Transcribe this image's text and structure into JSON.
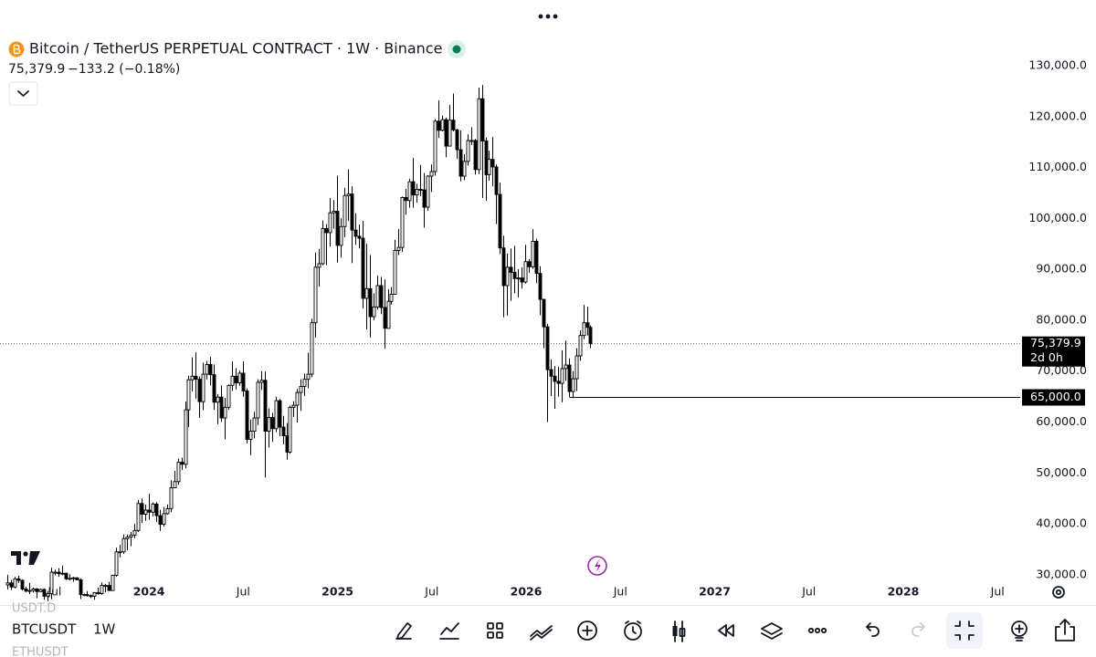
{
  "header": {
    "symbol": "Bitcoin / TetherUS PERPETUAL CONTRACT · 1W · Binance",
    "price": "75,379.9",
    "change": "−133.2 (−0.18%)"
  },
  "toolbar": {
    "symbol": "BTCUSDT",
    "interval": "1W",
    "watchlist": [
      "USDT.D",
      "ETHUSDT"
    ]
  },
  "chart_data": {
    "type": "candlestick",
    "up_color": "#ffffff",
    "down_color": "#000000",
    "x": [
      2023.25,
      2023.2692,
      2023.2884,
      2023.3076,
      2023.3268,
      2023.346,
      2023.3652,
      2023.3844,
      2023.4036,
      2023.4228,
      2023.442,
      2023.4612,
      2023.4804,
      2023.4996,
      2023.5188,
      2023.538,
      2023.5572,
      2023.5764,
      2023.5956,
      2023.6148,
      2023.634,
      2023.6532,
      2023.6724,
      2023.6916,
      2023.7108,
      2023.73,
      2023.7492,
      2023.7684,
      2023.7876,
      2023.8068,
      2023.826,
      2023.8452,
      2023.8644,
      2023.8836,
      2023.9028,
      2023.922,
      2023.9412,
      2023.9604,
      2023.9796,
      2023.9988,
      2024.018,
      2024.0372,
      2024.0564,
      2024.0756,
      2024.0948,
      2024.114,
      2024.1332,
      2024.1524,
      2024.1716,
      2024.1908,
      2024.21,
      2024.2292,
      2024.2484,
      2024.2676,
      2024.2868,
      2024.306,
      2024.3252,
      2024.3444,
      2024.3636,
      2024.3828,
      2024.402,
      2024.4212,
      2024.4404,
      2024.4596,
      2024.4788,
      2024.498,
      2024.5172,
      2024.5364,
      2024.5556,
      2024.5748,
      2024.594,
      2024.6132,
      2024.6324,
      2024.6516,
      2024.6708,
      2024.69,
      2024.7092,
      2024.7284,
      2024.7476,
      2024.7668,
      2024.786,
      2024.8052,
      2024.8244,
      2024.8436,
      2024.8628,
      2024.882,
      2024.9012,
      2024.9204,
      2024.9396,
      2024.9588,
      2024.978,
      2024.9972,
      2025.0164,
      2025.0356,
      2025.0548,
      2025.074,
      2025.0932,
      2025.1124,
      2025.1316,
      2025.1508,
      2025.17,
      2025.1892,
      2025.2084,
      2025.2276,
      2025.2468,
      2025.266,
      2025.2852,
      2025.3044,
      2025.3236,
      2025.3428,
      2025.362,
      2025.3812,
      2025.4004,
      2025.4196,
      2025.4388,
      2025.458,
      2025.4772,
      2025.4964,
      2025.5156,
      2025.5348,
      2025.554,
      2025.5732,
      2025.5924,
      2025.6116,
      2025.6308,
      2025.65,
      2025.6692,
      2025.6884,
      2025.7076,
      2025.7268,
      2025.746,
      2025.7652,
      2025.7844,
      2025.8036,
      2025.8228,
      2025.842,
      2025.8612,
      2025.8804,
      2025.8996,
      2025.9188,
      2025.938,
      2025.9572,
      2025.9764,
      2025.9956,
      2026.0148,
      2026.034,
      2026.0532,
      2026.0724,
      2026.0916,
      2026.1108,
      2026.13,
      2026.1492,
      2026.1684,
      2026.1876,
      2026.2068,
      2026.226,
      2026.2452,
      2026.2644,
      2026.2836,
      2026.3028,
      2026.322,
      2026.3412
    ],
    "open": [
      28000,
      28400,
      27600,
      29200,
      28900,
      27200,
      26800,
      26900,
      27200,
      26700,
      27100,
      25800,
      26300,
      30500,
      30500,
      30200,
      30300,
      29200,
      29300,
      29400,
      29000,
      26100,
      26100,
      25900,
      25800,
      26500,
      26300,
      27900,
      27900,
      26900,
      29900,
      34500,
      34500,
      37100,
      37400,
      37800,
      38700,
      44000,
      41900,
      42700,
      42300,
      43900,
      41600,
      39900,
      42000,
      43000,
      47100,
      48300,
      52100,
      51700,
      62400,
      68300,
      69000,
      68400,
      64000,
      69400,
      71300,
      69300,
      63900,
      64900,
      60800,
      62900,
      67200,
      69000,
      67700,
      69600,
      66100,
      56600,
      58200,
      60800,
      67800,
      68200,
      58200,
      60900,
      58700,
      64200,
      59000,
      57300,
      54100,
      62900,
      63300,
      65800,
      67000,
      68400,
      69400,
      79500,
      90400,
      91100,
      98000,
      97200,
      101100,
      101400,
      94700,
      98400,
      104500,
      104800,
      97700,
      96500,
      96100,
      84300,
      86200,
      80700,
      82600,
      86800,
      82500,
      78400,
      83700,
      85100,
      93700,
      94300,
      104100,
      103500,
      107200,
      104600,
      105700,
      105600,
      102200,
      108300,
      109200,
      119100,
      117300,
      119400,
      114200,
      119300,
      117400,
      113500,
      108300,
      111200,
      115300,
      115300,
      109600,
      123500,
      115200,
      108600,
      111600,
      110100,
      104700,
      94200,
      86800,
      90400,
      89400,
      88200,
      88300,
      87500,
      91500,
      90500,
      95500,
      89200,
      84100,
      78700,
      70300,
      69000,
      68000,
      67600,
      70500,
      71200,
      66000,
      68500,
      73000,
      77000,
      79500,
      78600
    ],
    "high": [
      30000,
      29000,
      29600,
      29800,
      29100,
      27700,
      28400,
      27500,
      27400,
      27300,
      27300,
      26800,
      31400,
      31000,
      31300,
      31800,
      30400,
      30100,
      29600,
      29500,
      29300,
      26300,
      26800,
      26100,
      26600,
      27500,
      28500,
      28200,
      28600,
      30000,
      35300,
      35900,
      37900,
      37900,
      38400,
      40000,
      44700,
      45000,
      43800,
      45900,
      44200,
      44300,
      42800,
      43300,
      43800,
      48600,
      50400,
      52800,
      53000,
      64000,
      69100,
      72700,
      73700,
      68900,
      71700,
      72000,
      72800,
      71300,
      65500,
      67200,
      64700,
      67400,
      71900,
      70600,
      70100,
      71900,
      66600,
      60500,
      62000,
      68400,
      70000,
      69900,
      62700,
      61800,
      65000,
      64500,
      61200,
      59800,
      63200,
      64100,
      66500,
      68400,
      69500,
      73600,
      80300,
      93300,
      94000,
      99600,
      98900,
      104000,
      103600,
      108400,
      100000,
      106000,
      109600,
      106300,
      101000,
      98800,
      99500,
      95000,
      92800,
      85300,
      88800,
      88500,
      88000,
      86100,
      86500,
      95800,
      97900,
      104300,
      105800,
      107800,
      111900,
      106800,
      110500,
      108900,
      108500,
      110600,
      119500,
      123200,
      120200,
      119800,
      122300,
      124500,
      117600,
      117300,
      112600,
      116500,
      117900,
      115600,
      125700,
      126200,
      115900,
      113300,
      116000,
      110600,
      107000,
      96600,
      93100,
      94100,
      94600,
      90000,
      90400,
      94800,
      92000,
      97900,
      96000,
      90600,
      84200,
      79300,
      72300,
      71000,
      70900,
      74100,
      76000,
      72500,
      70000,
      74500,
      78000,
      83000,
      82600,
      79000
    ],
    "low": [
      27100,
      27000,
      27300,
      28400,
      26900,
      26600,
      26200,
      26500,
      25400,
      26600,
      25100,
      24800,
      25200,
      29900,
      29600,
      29900,
      29000,
      28900,
      28600,
      28900,
      25200,
      25800,
      25700,
      25400,
      25100,
      26100,
      26100,
      26600,
      26800,
      26900,
      29600,
      33400,
      34100,
      34800,
      35600,
      37200,
      38400,
      40200,
      40600,
      40800,
      41500,
      40400,
      38600,
      39500,
      41800,
      42300,
      47000,
      47700,
      50600,
      50900,
      59000,
      66000,
      64600,
      60800,
      62300,
      68400,
      67200,
      62400,
      59600,
      60000,
      56600,
      62400,
      66100,
      66400,
      67100,
      65000,
      55800,
      53500,
      56800,
      59400,
      66300,
      49100,
      55000,
      56100,
      58000,
      57200,
      55600,
      52600,
      53800,
      61000,
      59900,
      62200,
      65100,
      66600,
      68800,
      76600,
      86600,
      90800,
      90800,
      94500,
      98000,
      91300,
      92300,
      96300,
      99500,
      91200,
      94800,
      94100,
      82300,
      78200,
      76600,
      80000,
      82100,
      81200,
      74400,
      78300,
      83100,
      85100,
      92800,
      93400,
      100700,
      102100,
      102100,
      103100,
      104400,
      98200,
      101500,
      105200,
      108400,
      115800,
      117100,
      112000,
      114200,
      117100,
      111700,
      107300,
      107500,
      110400,
      114400,
      108600,
      108700,
      104000,
      103500,
      107400,
      106300,
      98900,
      93000,
      80600,
      80900,
      83800,
      85300,
      84500,
      86200,
      87200,
      89300,
      90100,
      87300,
      81000,
      74500,
      60000,
      65100,
      62600,
      65000,
      63900,
      68100,
      64900,
      64700,
      66100,
      72000,
      76300,
      77000,
      74500
    ],
    "close": [
      28400,
      27600,
      29200,
      28900,
      27200,
      26800,
      26900,
      27200,
      26700,
      27100,
      25800,
      26300,
      30500,
      30500,
      30200,
      30300,
      29200,
      29300,
      29400,
      29000,
      26100,
      26100,
      25900,
      25800,
      26500,
      26300,
      27900,
      27900,
      26900,
      29900,
      34500,
      34500,
      37100,
      37400,
      37800,
      38700,
      44000,
      41900,
      42700,
      42300,
      43900,
      41600,
      39900,
      42000,
      43000,
      47100,
      48300,
      52100,
      51700,
      62400,
      68300,
      69000,
      68400,
      64000,
      69400,
      71300,
      69300,
      63900,
      64900,
      60800,
      62900,
      67200,
      69000,
      67700,
      69600,
      66100,
      56600,
      58200,
      60800,
      67800,
      68200,
      58200,
      60900,
      58700,
      64200,
      59000,
      57300,
      54100,
      62900,
      63300,
      65800,
      67000,
      68400,
      69400,
      79500,
      90400,
      91100,
      98000,
      97200,
      101100,
      101400,
      94700,
      98400,
      104500,
      104800,
      97700,
      96500,
      96100,
      84300,
      86200,
      80700,
      82600,
      86800,
      82500,
      78400,
      83700,
      85100,
      93700,
      94300,
      104100,
      103500,
      107200,
      104600,
      105700,
      105600,
      102200,
      108300,
      109200,
      119100,
      117300,
      119400,
      114200,
      119300,
      117400,
      113500,
      108300,
      111200,
      115300,
      115300,
      109600,
      123500,
      115200,
      108600,
      111600,
      110100,
      104700,
      94200,
      86800,
      90400,
      89400,
      88200,
      88300,
      87500,
      91500,
      90500,
      95500,
      89200,
      84100,
      78700,
      70300,
      69000,
      68000,
      67600,
      70500,
      71200,
      66000,
      68500,
      73000,
      77000,
      79500,
      78600,
      75379.9
    ],
    "xlim": [
      2023.21,
      2028.62
    ],
    "ylim": [
      24600,
      142900
    ],
    "xticks": [
      {
        "value": 2023.5,
        "label": "Jul"
      },
      {
        "value": 2024,
        "label": "2024"
      },
      {
        "value": 2024.5,
        "label": "Jul"
      },
      {
        "value": 2025,
        "label": "2025"
      },
      {
        "value": 2025.5,
        "label": "Jul"
      },
      {
        "value": 2026,
        "label": "2026"
      },
      {
        "value": 2026.5,
        "label": "Jul"
      },
      {
        "value": 2027,
        "label": "2027"
      },
      {
        "value": 2027.5,
        "label": "Jul"
      },
      {
        "value": 2028,
        "label": "2028"
      },
      {
        "value": 2028.5,
        "label": "Jul"
      }
    ],
    "yticks": [
      {
        "value": 30000,
        "label": "30,000.0"
      },
      {
        "value": 40000,
        "label": "40,000.0"
      },
      {
        "value": 50000,
        "label": "50,000.0"
      },
      {
        "value": 60000,
        "label": "60,000.0"
      },
      {
        "value": 70000,
        "label": "70,000.0"
      },
      {
        "value": 80000,
        "label": "80,000.0"
      },
      {
        "value": 90000,
        "label": "90,000.0"
      },
      {
        "value": 100000,
        "label": "100,000.0"
      },
      {
        "value": 110000,
        "label": "110,000.0"
      },
      {
        "value": 120000,
        "label": "120,000.0"
      },
      {
        "value": 130000,
        "label": "130,000.0"
      }
    ],
    "price_line": {
      "value": 75379.9,
      "label": "75,379.9",
      "countdown": "2d 0h"
    },
    "hline": {
      "value": 65000,
      "label": "65,000.0",
      "x_start": 2026.23
    }
  }
}
